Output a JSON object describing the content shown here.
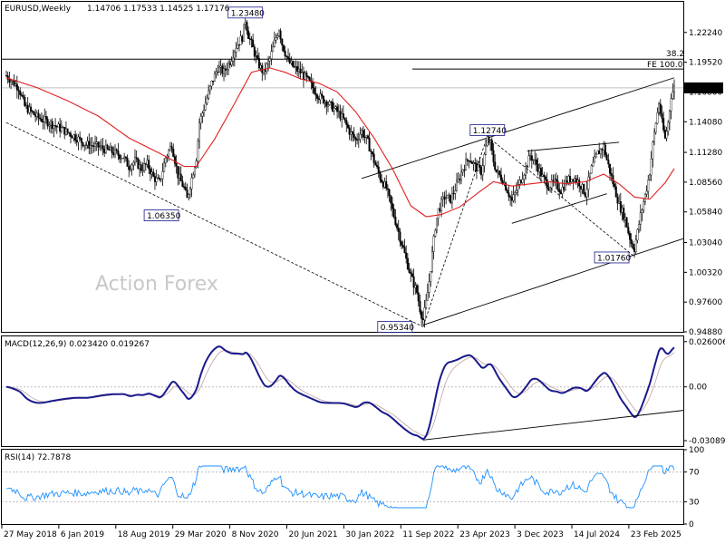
{
  "chart_data": [
    {
      "type": "candlestick",
      "title": "EURUSD,Weekly",
      "ohlc_header": "1.14706 1.17533 1.14525 1.17176",
      "watermark": "Action Forex",
      "ylim": [
        0.9488,
        1.2504
      ],
      "y_ticks": [
        "1.22240",
        "1.19520",
        "1.16800",
        "1.14080",
        "1.11280",
        "1.08560",
        "1.05840",
        "1.03040",
        "1.00320",
        "0.97600",
        "0.94880"
      ],
      "last_price": "1.17176",
      "x_labels": [
        "27 May 2018",
        "6 Jan 2019",
        "18 Aug 2019",
        "29 Mar 2020",
        "8 Nov 2020",
        "20 Jun 2021",
        "30 Jan 2022",
        "11 Sep 2022",
        "23 Apr 2023",
        "3 Dec 2023",
        "14 Jul 2024",
        "23 Feb 2025"
      ],
      "price_path": [
        [
          0,
          1.183
        ],
        [
          8,
          1.172
        ],
        [
          12,
          1.155
        ],
        [
          20,
          1.145
        ],
        [
          28,
          1.14
        ],
        [
          36,
          1.134
        ],
        [
          44,
          1.128
        ],
        [
          52,
          1.12
        ],
        [
          60,
          1.118
        ],
        [
          68,
          1.114
        ],
        [
          76,
          1.109
        ],
        [
          80,
          1.1
        ],
        [
          84,
          1.105
        ],
        [
          88,
          1.098
        ],
        [
          92,
          1.102
        ],
        [
          96,
          1.09
        ],
        [
          100,
          1.085
        ],
        [
          104,
          1.108
        ],
        [
          108,
          1.12
        ],
        [
          112,
          1.092
        ],
        [
          116,
          1.08
        ],
        [
          118,
          1.07
        ],
        [
          120,
          1.083
        ],
        [
          124,
          1.108
        ],
        [
          126,
          1.14
        ],
        [
          130,
          1.158
        ],
        [
          134,
          1.176
        ],
        [
          138,
          1.19
        ],
        [
          142,
          1.186
        ],
        [
          146,
          1.196
        ],
        [
          150,
          1.21
        ],
        [
          154,
          1.218
        ],
        [
          156,
          1.234
        ],
        [
          158,
          1.22
        ],
        [
          160,
          1.212
        ],
        [
          164,
          1.195
        ],
        [
          168,
          1.185
        ],
        [
          172,
          1.198
        ],
        [
          176,
          1.218
        ],
        [
          178,
          1.226
        ],
        [
          180,
          1.212
        ],
        [
          184,
          1.196
        ],
        [
          188,
          1.19
        ],
        [
          192,
          1.186
        ],
        [
          196,
          1.18
        ],
        [
          200,
          1.172
        ],
        [
          204,
          1.164
        ],
        [
          208,
          1.16
        ],
        [
          212,
          1.155
        ],
        [
          216,
          1.15
        ],
        [
          220,
          1.143
        ],
        [
          224,
          1.132
        ],
        [
          228,
          1.124
        ],
        [
          232,
          1.132
        ],
        [
          236,
          1.122
        ],
        [
          240,
          1.105
        ],
        [
          244,
          1.09
        ],
        [
          248,
          1.08
        ],
        [
          252,
          1.06
        ],
        [
          256,
          1.04
        ],
        [
          260,
          1.02
        ],
        [
          264,
          1.0
        ],
        [
          268,
          0.985
        ],
        [
          270,
          0.97
        ],
        [
          272,
          0.96
        ],
        [
          274,
          0.975
        ],
        [
          276,
          0.995
        ],
        [
          278,
          1.02
        ],
        [
          280,
          1.045
        ],
        [
          282,
          1.06
        ],
        [
          286,
          1.072
        ],
        [
          290,
          1.07
        ],
        [
          294,
          1.083
        ],
        [
          298,
          1.098
        ],
        [
          302,
          1.108
        ],
        [
          306,
          1.1
        ],
        [
          310,
          1.095
        ],
        [
          314,
          1.125
        ],
        [
          316,
          1.12
        ],
        [
          318,
          1.105
        ],
        [
          320,
          1.095
        ],
        [
          324,
          1.088
        ],
        [
          328,
          1.075
        ],
        [
          330,
          1.068
        ],
        [
          334,
          1.082
        ],
        [
          338,
          1.095
        ],
        [
          342,
          1.11
        ],
        [
          346,
          1.102
        ],
        [
          350,
          1.09
        ],
        [
          354,
          1.082
        ],
        [
          358,
          1.085
        ],
        [
          362,
          1.078
        ],
        [
          366,
          1.087
        ],
        [
          370,
          1.09
        ],
        [
          374,
          1.085
        ],
        [
          378,
          1.075
        ],
        [
          382,
          1.098
        ],
        [
          386,
          1.112
        ],
        [
          390,
          1.118
        ],
        [
          392,
          1.106
        ],
        [
          396,
          1.085
        ],
        [
          400,
          1.065
        ],
        [
          404,
          1.052
        ],
        [
          406,
          1.04
        ],
        [
          408,
          1.03
        ],
        [
          410,
          1.025
        ],
        [
          412,
          1.04
        ],
        [
          414,
          1.055
        ],
        [
          418,
          1.08
        ],
        [
          420,
          1.095
        ],
        [
          422,
          1.12
        ],
        [
          424,
          1.14
        ],
        [
          426,
          1.158
        ],
        [
          428,
          1.14
        ],
        [
          430,
          1.125
        ],
        [
          432,
          1.14
        ],
        [
          434,
          1.165
        ],
        [
          436,
          1.17176
        ]
      ],
      "ma_path": [
        [
          0,
          1.181
        ],
        [
          20,
          1.172
        ],
        [
          40,
          1.16
        ],
        [
          60,
          1.146
        ],
        [
          80,
          1.126
        ],
        [
          100,
          1.112
        ],
        [
          116,
          1.1
        ],
        [
          124,
          1.1
        ],
        [
          136,
          1.125
        ],
        [
          148,
          1.155
        ],
        [
          160,
          1.186
        ],
        [
          172,
          1.19
        ],
        [
          182,
          1.186
        ],
        [
          192,
          1.18
        ],
        [
          204,
          1.176
        ],
        [
          216,
          1.168
        ],
        [
          228,
          1.15
        ],
        [
          240,
          1.126
        ],
        [
          252,
          1.098
        ],
        [
          264,
          1.064
        ],
        [
          274,
          1.054
        ],
        [
          284,
          1.056
        ],
        [
          296,
          1.063
        ],
        [
          310,
          1.078
        ],
        [
          318,
          1.086
        ],
        [
          330,
          1.082
        ],
        [
          342,
          1.084
        ],
        [
          354,
          1.086
        ],
        [
          366,
          1.084
        ],
        [
          378,
          1.086
        ],
        [
          390,
          1.093
        ],
        [
          400,
          1.084
        ],
        [
          410,
          1.072
        ],
        [
          420,
          1.07
        ],
        [
          430,
          1.085
        ],
        [
          436,
          1.098
        ]
      ],
      "annotations": [
        {
          "label": "1.23480",
          "x": 156,
          "y": 1.2348
        },
        {
          "label": "1.06350",
          "x": 116,
          "y": 1.0635
        },
        {
          "label": "1.12740",
          "x": 314,
          "y": 1.1274
        },
        {
          "label": "0.95340",
          "x": 272,
          "y": 0.9534
        },
        {
          "label": "1.01760",
          "x": 410,
          "y": 1.0176
        }
      ],
      "levels": [
        {
          "label": "38.2",
          "value": 1.198
        },
        {
          "label": "FE 100.0",
          "value": 1.189
        }
      ]
    },
    {
      "type": "line",
      "title": "MACD(12,26,9) 0.023420 0.019267",
      "ylim": [
        -0.034,
        0.029
      ],
      "y_ticks": [
        "0.026006",
        "0.00",
        "-0.03089"
      ]
    },
    {
      "type": "line",
      "title": "RSI(14) 72.7878",
      "ylim": [
        0,
        100
      ],
      "y_ticks": [
        "100",
        "70",
        "30",
        "0"
      ]
    }
  ]
}
